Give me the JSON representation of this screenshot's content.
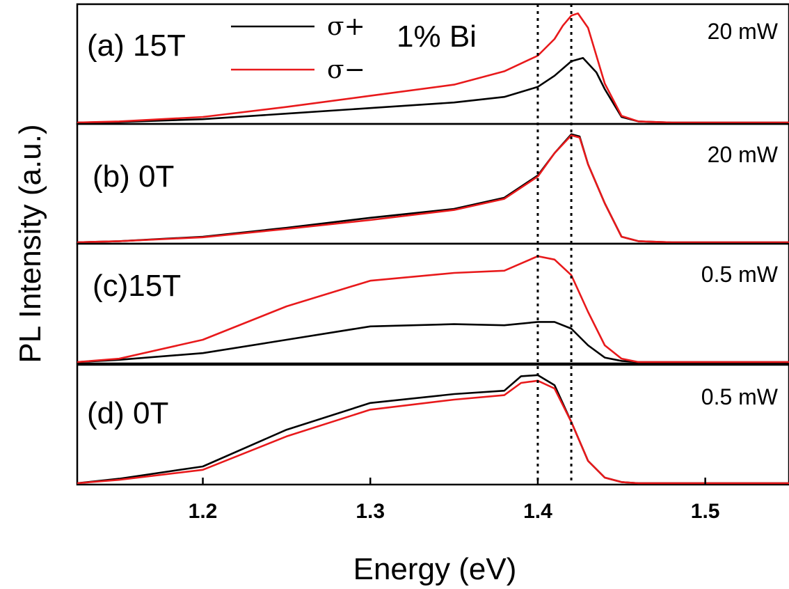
{
  "chart_data": {
    "type": "line",
    "xlabel": "Energy (eV)",
    "ylabel": "PL Intensity (a.u.)",
    "xlim": [
      1.125,
      1.55
    ],
    "xticks": [
      1.2,
      1.3,
      1.4,
      1.5
    ],
    "xtick_labels": [
      "1.2",
      "1.3",
      "1.4",
      "1.5"
    ],
    "sample_label": "1% Bi",
    "reference_lines_eV": [
      1.4,
      1.42
    ],
    "legend": [
      {
        "label": "σ+",
        "color": "#000000"
      },
      {
        "label": "σ−",
        "color": "#e8191b"
      }
    ],
    "panels": [
      {
        "label": "(a) 15T",
        "power": "20 mW",
        "ylim": [
          0,
          1
        ],
        "series": [
          {
            "name": "σ+",
            "color": "#000000",
            "x": [
              1.125,
              1.15,
              1.2,
              1.25,
              1.3,
              1.35,
              1.38,
              1.4,
              1.41,
              1.42,
              1.427,
              1.435,
              1.44,
              1.45,
              1.46,
              1.48,
              1.55
            ],
            "y": [
              0,
              0.005,
              0.03,
              0.08,
              0.13,
              0.18,
              0.23,
              0.32,
              0.42,
              0.55,
              0.58,
              0.45,
              0.3,
              0.05,
              0.01,
              0,
              0
            ]
          },
          {
            "name": "σ−",
            "color": "#e8191b",
            "x": [
              1.125,
              1.15,
              1.2,
              1.25,
              1.3,
              1.35,
              1.38,
              1.4,
              1.41,
              1.415,
              1.42,
              1.424,
              1.43,
              1.435,
              1.44,
              1.45,
              1.46,
              1.48,
              1.55
            ],
            "y": [
              0,
              0.01,
              0.05,
              0.14,
              0.24,
              0.34,
              0.46,
              0.6,
              0.75,
              0.87,
              0.96,
              0.98,
              0.85,
              0.6,
              0.35,
              0.06,
              0.01,
              0,
              0
            ]
          }
        ]
      },
      {
        "label": "(b) 0T",
        "power": "20 mW",
        "ylim": [
          0,
          1
        ],
        "series": [
          {
            "name": "σ+",
            "color": "#000000",
            "x": [
              1.125,
              1.15,
              1.2,
              1.25,
              1.3,
              1.35,
              1.38,
              1.4,
              1.41,
              1.42,
              1.425,
              1.43,
              1.44,
              1.45,
              1.46,
              1.48,
              1.55
            ],
            "y": [
              0,
              0.01,
              0.05,
              0.13,
              0.22,
              0.3,
              0.4,
              0.6,
              0.8,
              0.97,
              0.95,
              0.7,
              0.35,
              0.05,
              0.01,
              0,
              0
            ]
          },
          {
            "name": "σ−",
            "color": "#e8191b",
            "x": [
              1.125,
              1.15,
              1.2,
              1.25,
              1.3,
              1.35,
              1.38,
              1.4,
              1.41,
              1.42,
              1.425,
              1.43,
              1.44,
              1.45,
              1.46,
              1.48,
              1.55
            ],
            "y": [
              0,
              0.01,
              0.045,
              0.12,
              0.2,
              0.29,
              0.39,
              0.59,
              0.8,
              0.96,
              0.94,
              0.7,
              0.35,
              0.05,
              0.01,
              0,
              0
            ]
          }
        ]
      },
      {
        "label": "(c)15T",
        "power": "0.5 mW",
        "ylim": [
          0,
          1
        ],
        "series": [
          {
            "name": "σ+",
            "color": "#000000",
            "x": [
              1.125,
              1.15,
              1.2,
              1.25,
              1.3,
              1.35,
              1.38,
              1.4,
              1.41,
              1.42,
              1.43,
              1.44,
              1.45,
              1.46,
              1.48,
              1.55
            ],
            "y": [
              0,
              0.02,
              0.08,
              0.2,
              0.32,
              0.34,
              0.33,
              0.36,
              0.36,
              0.3,
              0.15,
              0.04,
              0.01,
              0,
              0,
              0
            ]
          },
          {
            "name": "σ−",
            "color": "#e8191b",
            "x": [
              1.125,
              1.15,
              1.2,
              1.25,
              1.3,
              1.35,
              1.38,
              1.4,
              1.41,
              1.42,
              1.43,
              1.44,
              1.45,
              1.46,
              1.48,
              1.55
            ],
            "y": [
              0,
              0.03,
              0.2,
              0.5,
              0.73,
              0.8,
              0.82,
              0.95,
              0.92,
              0.78,
              0.45,
              0.15,
              0.03,
              0,
              0,
              0
            ]
          }
        ]
      },
      {
        "label": "(d) 0T",
        "power": "0.5 mW",
        "ylim": [
          0,
          1
        ],
        "series": [
          {
            "name": "σ+",
            "color": "#000000",
            "x": [
              1.125,
              1.15,
              1.2,
              1.25,
              1.3,
              1.35,
              1.38,
              1.39,
              1.4,
              1.41,
              1.42,
              1.43,
              1.44,
              1.45,
              1.46,
              1.48,
              1.55
            ],
            "y": [
              0,
              0.04,
              0.15,
              0.48,
              0.72,
              0.8,
              0.83,
              0.96,
              0.97,
              0.88,
              0.55,
              0.2,
              0.05,
              0.01,
              0,
              0,
              0
            ]
          },
          {
            "name": "σ−",
            "color": "#e8191b",
            "x": [
              1.125,
              1.15,
              1.2,
              1.25,
              1.3,
              1.35,
              1.38,
              1.39,
              1.4,
              1.41,
              1.42,
              1.43,
              1.44,
              1.45,
              1.46,
              1.48,
              1.55
            ],
            "y": [
              0,
              0.03,
              0.12,
              0.42,
              0.66,
              0.75,
              0.79,
              0.9,
              0.92,
              0.85,
              0.55,
              0.2,
              0.05,
              0.01,
              0,
              0,
              0
            ]
          }
        ]
      }
    ]
  }
}
